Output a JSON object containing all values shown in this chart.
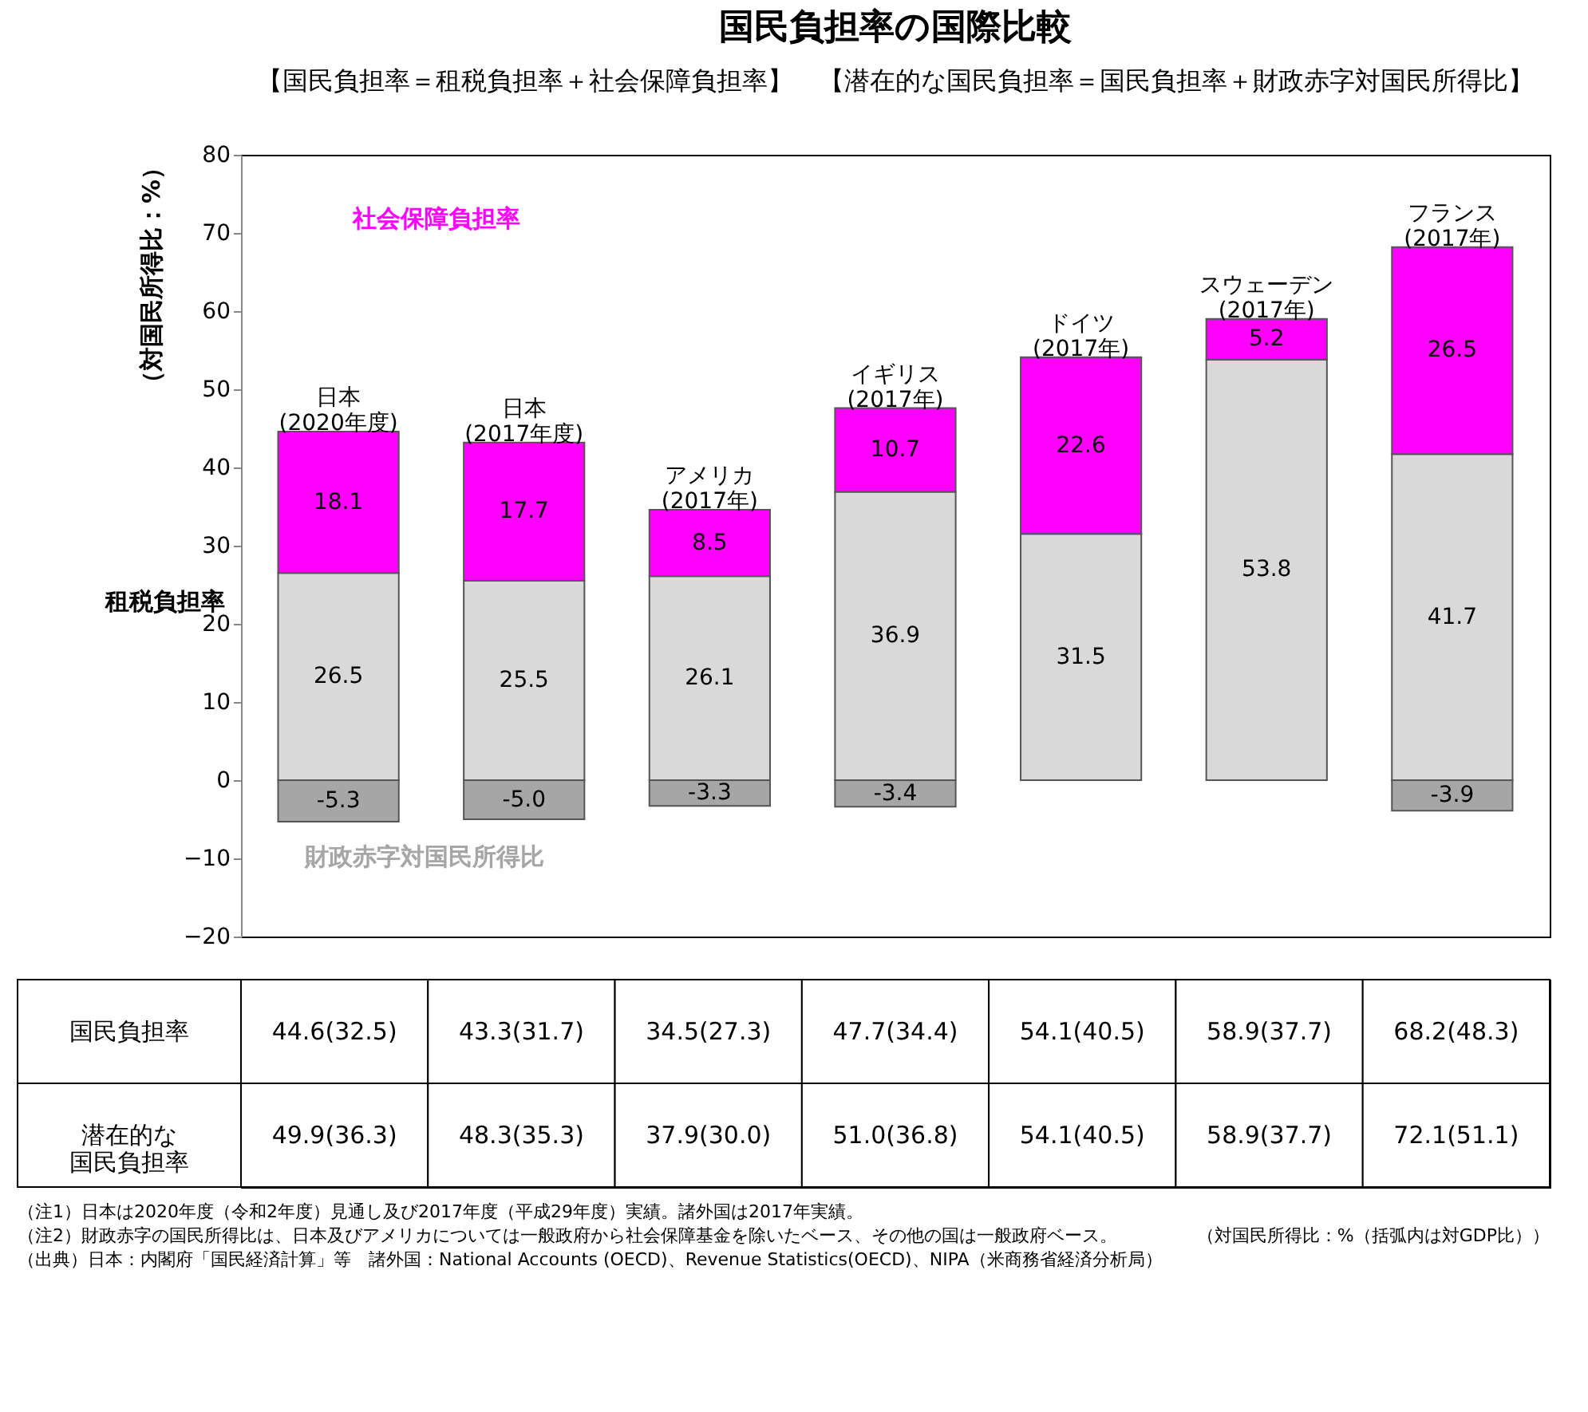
{
  "chart_data": [
    {
      "type": "bar",
      "title": "国民負担率の国際比較",
      "subtitle": "【国民負担率＝租税負担率＋社会保障負担率】　【潜在的な国民負担率＝国民負担率＋財政赤字対国民所得比】",
      "ylabel": "（対国民所得比：%）",
      "categories": [
        "日本\n(2020年度)",
        "日本\n(2017年度)",
        "アメリカ\n(2017年)",
        "イギリス\n(2017年)",
        "ドイツ\n(2017年)",
        "スウェーデン\n(2017年)",
        "フランス\n(2017年)"
      ],
      "stacked": true,
      "data_labels": true,
      "legend": false,
      "grid": false,
      "tick_labels": "y",
      "ylim": [
        -20,
        80
      ],
      "yticks": [
        -20,
        -10,
        0,
        10,
        20,
        30,
        40,
        50,
        60,
        70,
        80
      ],
      "series": [
        {
          "name": "租税負担率",
          "color": "#d9d9d9",
          "values": [
            26.5,
            25.5,
            26.1,
            36.9,
            31.5,
            53.8,
            41.7
          ]
        },
        {
          "name": "社会保障負担率",
          "color": "#ff00ff",
          "values": [
            18.1,
            17.7,
            8.5,
            10.7,
            22.6,
            5.2,
            26.5
          ]
        },
        {
          "name": "財政赤字対国民所得比",
          "color": "#a6a6a6",
          "values": [
            -5.3,
            -5.0,
            -3.3,
            -3.4,
            null,
            null,
            -3.9
          ],
          "value_labels": [
            "-5.3",
            "-5.0",
            "-3.3",
            "-3.4",
            null,
            null,
            "-3.9"
          ]
        }
      ]
    },
    {
      "type": "other",
      "categories": [
        null,
        null,
        null,
        null,
        null,
        null,
        null
      ],
      "y_categories": [
        "国民負担率",
        "潜在的な国民負担率"
      ],
      "cell_labels": [
        [
          "44.6(32.5)",
          "43.3(31.7)",
          "34.5(27.3)",
          "47.7(34.4)",
          "54.1(40.5)",
          "58.9(37.7)",
          "68.2(48.3)"
        ],
        [
          "49.9(36.3)",
          "48.3(35.3)",
          "37.9(30.0)",
          "51.0(36.8)",
          "54.1(40.5)",
          "58.9(37.7)",
          "72.1(51.1)"
        ]
      ],
      "annotations": [
        "（注1）日本は2020年度（令和2年度）見通し及び2017年度（平成29年度）実績。諸外国は2017年実績。",
        "（注2）財政赤字の国民所得比は、日本及びアメリカについては一般政府から社会保障基金を除いたベース、その他の国は一般政府ベース。",
        "（出典）日本：内閣府「国民経済計算」等　諸外国：National Accounts (OECD)、Revenue Statistics(OECD)、NIPA（米商務省経済分析局）",
        "（対国民所得比：%（括弧内は対GDP比））"
      ]
    }
  ]
}
